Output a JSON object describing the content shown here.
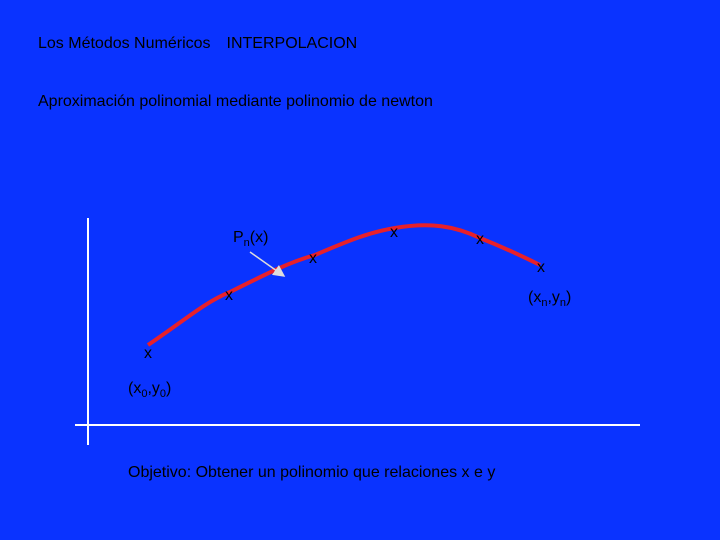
{
  "header": {
    "title": "Los Métodos Numéricos",
    "topic": "INTERPOLACION"
  },
  "subtitle": "Aproximación polinomial mediante polinomio de newton",
  "curve_label": {
    "base": "P",
    "sub": "n",
    "tail": "(x)"
  },
  "point_marks": [
    "x",
    "x",
    "x",
    "x",
    "x",
    "x"
  ],
  "start_label": {
    "parts": [
      "(x",
      "0",
      ",y",
      "0",
      ")"
    ]
  },
  "end_label": {
    "parts": [
      "(x",
      "n",
      ",y",
      "n",
      ")"
    ]
  },
  "objective": "Objetivo: Obtener un polinomio que relaciones x e y"
}
